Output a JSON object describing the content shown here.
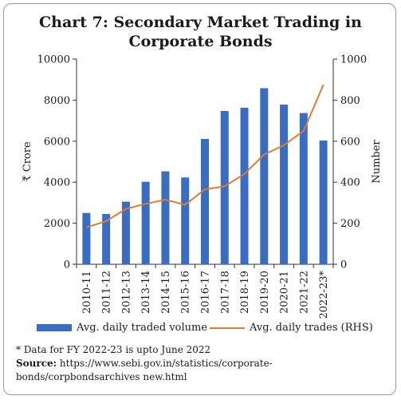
{
  "title_line1": "Chart 7: Secondary Market Trading in",
  "title_line2": "Corporate Bonds",
  "chart_data": {
    "type": "bar",
    "title": "Chart 7: Secondary Market Trading in Corporate Bonds",
    "categories": [
      "2010-11",
      "2011-12",
      "2012-13",
      "2013-14",
      "2014-15",
      "2015-16",
      "2016-17",
      "2017-18",
      "2018-19",
      "2019-20",
      "2020-21",
      "2021-22",
      "2022-23*"
    ],
    "series": [
      {
        "name": "Avg. daily traded volume",
        "type": "bar",
        "axis": "left",
        "color": "#3a6cc0",
        "values": [
          2500,
          2450,
          3050,
          4020,
          4530,
          4230,
          6110,
          7470,
          7630,
          8580,
          7780,
          7370,
          6030
        ]
      },
      {
        "name": "Avg. daily trades (RHS)",
        "type": "line",
        "axis": "right",
        "color": "#e07b32",
        "values": [
          180,
          210,
          270,
          295,
          315,
          290,
          365,
          380,
          440,
          535,
          580,
          650,
          875
        ]
      }
    ],
    "ylabel": "₹ Crore",
    "y2label": "Number",
    "ylim": [
      0,
      10000
    ],
    "y2lim": [
      0,
      1000
    ],
    "yticks": [
      "0",
      "2000",
      "4000",
      "6000",
      "8000",
      "10000"
    ],
    "y2ticks": [
      "0",
      "200",
      "400",
      "600",
      "800",
      "1000"
    ],
    "grid": false,
    "legend": "bottom"
  },
  "note": "* Data for FY 2022-23 is upto June 2022",
  "source_label": "Source:",
  "source_text": "https://www.sebi.gov.in/statistics/corporate-bonds/corpbondsarchives new.html"
}
